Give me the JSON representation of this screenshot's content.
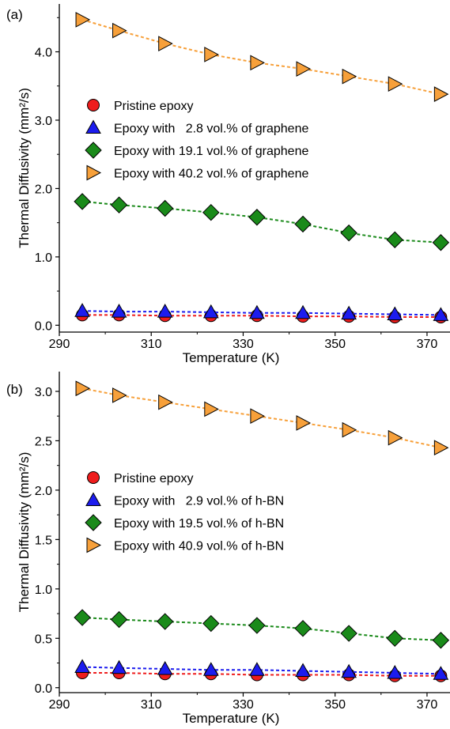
{
  "chart_data": [
    {
      "type": "scatter",
      "panel_label": "(a)",
      "xlabel": "Temperature (K)",
      "ylabel": "Thermal  Diffusivity (mm²/s)",
      "xlim": [
        290,
        375
      ],
      "ylim": [
        -0.1,
        4.7
      ],
      "xticks": [
        290,
        310,
        330,
        350,
        370
      ],
      "xtick_labels": [
        "290",
        "310",
        "330",
        "350",
        "370"
      ],
      "yticks": [
        0.0,
        1.0,
        2.0,
        3.0,
        4.0
      ],
      "ytick_labels": [
        "0.0",
        "1.0",
        "2.0",
        "3.0",
        "4.0"
      ],
      "legend_placement": "upper-left",
      "x": [
        295,
        303,
        313,
        323,
        333,
        343,
        353,
        363,
        373
      ],
      "series": [
        {
          "name": "Pristine epoxy",
          "marker": "circle",
          "color": "#ee1c1c",
          "values": [
            0.15,
            0.15,
            0.14,
            0.14,
            0.14,
            0.13,
            0.13,
            0.12,
            0.12
          ]
        },
        {
          "name": "Epoxy with   2.8 vol.% of graphene",
          "marker": "triangle-up",
          "color": "#1c1cee",
          "values": [
            0.21,
            0.2,
            0.2,
            0.19,
            0.18,
            0.18,
            0.17,
            0.16,
            0.15
          ]
        },
        {
          "name": "Epoxy with 19.1 vol.% of graphene",
          "marker": "diamond",
          "color": "#1a8a1a",
          "values": [
            1.81,
            1.76,
            1.71,
            1.65,
            1.58,
            1.48,
            1.35,
            1.25,
            1.21
          ]
        },
        {
          "name": "Epoxy with 40.2 vol.% of graphene",
          "marker": "triangle-right",
          "color": "#f7a03a",
          "values": [
            4.47,
            4.31,
            4.12,
            3.96,
            3.84,
            3.75,
            3.64,
            3.53,
            3.38
          ]
        }
      ]
    },
    {
      "type": "scatter",
      "panel_label": "(b)",
      "xlabel": "Temperature (K)",
      "ylabel": "Thermal  Diffusivity (mm²/s)",
      "xlim": [
        290,
        375
      ],
      "ylim": [
        -0.05,
        3.2
      ],
      "xticks": [
        290,
        310,
        330,
        350,
        370
      ],
      "xtick_labels": [
        "290",
        "310",
        "330",
        "350",
        "370"
      ],
      "yticks": [
        0.0,
        0.5,
        1.0,
        1.5,
        2.0,
        2.5,
        3.0
      ],
      "ytick_labels": [
        "0.0",
        "0.5",
        "1.0",
        "1.5",
        "2.0",
        "2.5",
        "3.0"
      ],
      "legend_placement": "middle-left",
      "x": [
        295,
        303,
        313,
        323,
        333,
        343,
        353,
        363,
        373
      ],
      "series": [
        {
          "name": "Pristine epoxy",
          "marker": "circle",
          "color": "#ee1c1c",
          "values": [
            0.15,
            0.15,
            0.14,
            0.14,
            0.13,
            0.13,
            0.13,
            0.12,
            0.12
          ]
        },
        {
          "name": "Epoxy with   2.9 vol.% of h-BN",
          "marker": "triangle-up",
          "color": "#1c1cee",
          "values": [
            0.21,
            0.2,
            0.19,
            0.18,
            0.18,
            0.17,
            0.16,
            0.15,
            0.14
          ]
        },
        {
          "name": "Epoxy with 19.5 vol.% of h-BN",
          "marker": "diamond",
          "color": "#1a8a1a",
          "values": [
            0.71,
            0.69,
            0.67,
            0.65,
            0.63,
            0.6,
            0.55,
            0.5,
            0.48
          ]
        },
        {
          "name": "Epoxy with 40.9 vol.% of h-BN",
          "marker": "triangle-right",
          "color": "#f7a03a",
          "values": [
            3.03,
            2.96,
            2.89,
            2.82,
            2.75,
            2.68,
            2.61,
            2.53,
            2.43
          ]
        }
      ]
    }
  ]
}
